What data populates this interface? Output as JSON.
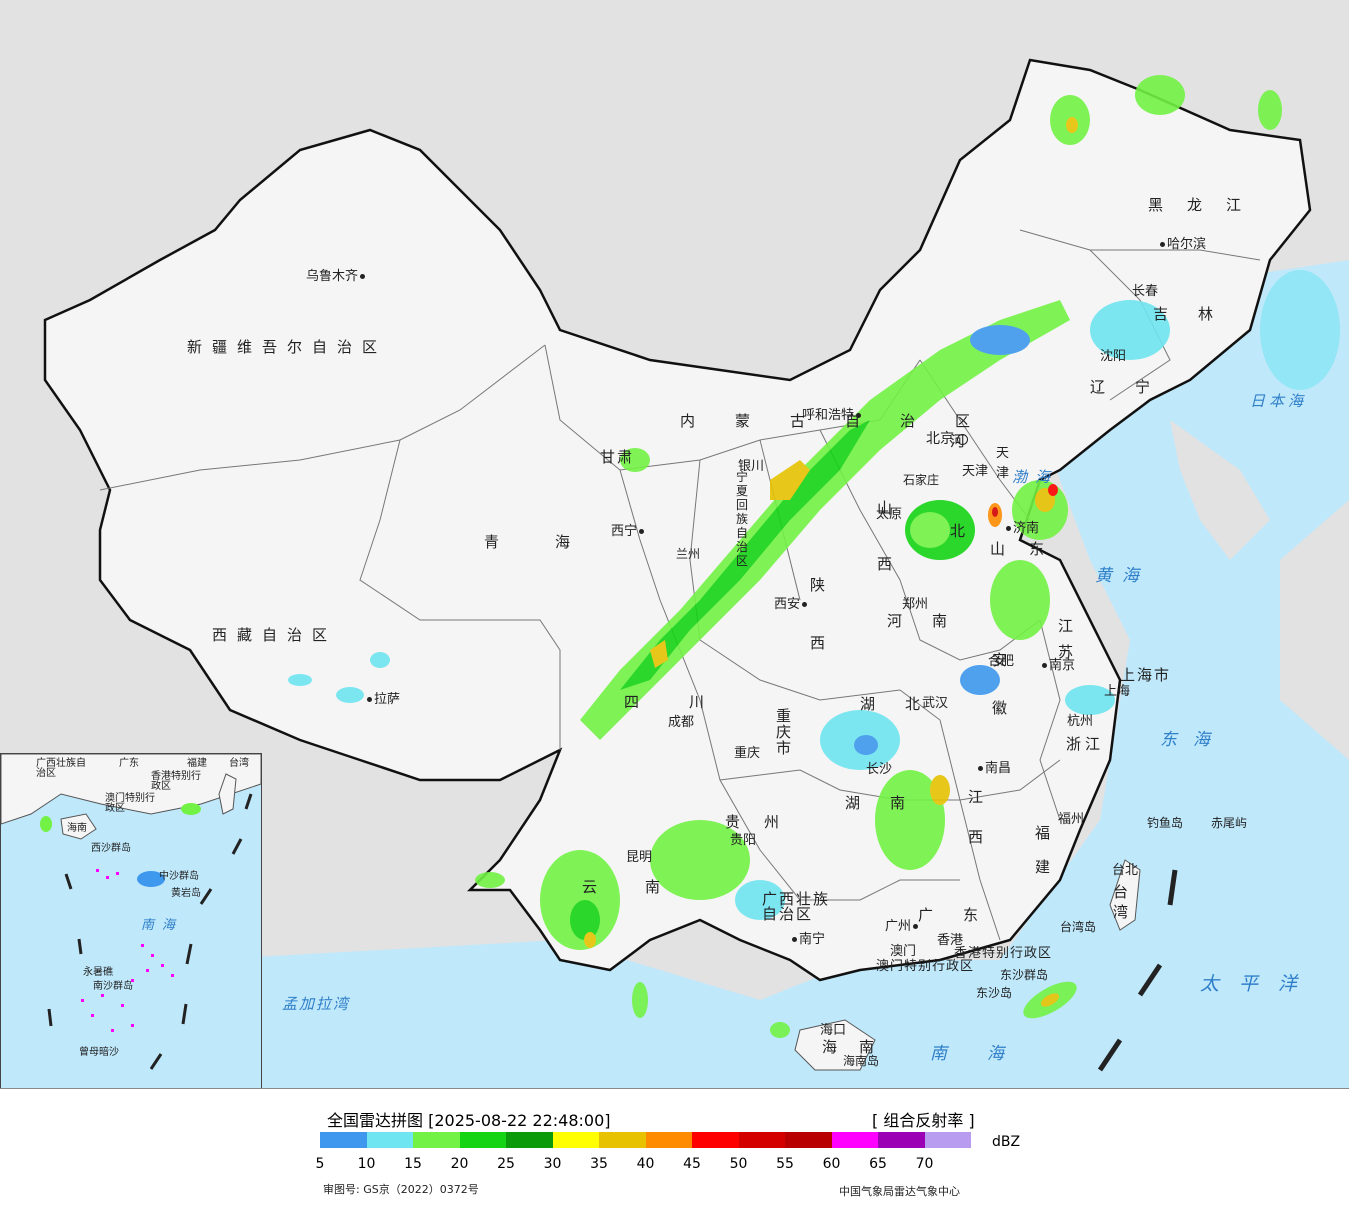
{
  "legend": {
    "title": "全国雷达拼图 [2025-08-22 22:48:00]",
    "product": "[ 组合反射率 ]",
    "unit": "dBZ",
    "ticks": [
      "5",
      "10",
      "15",
      "20",
      "25",
      "30",
      "35",
      "40",
      "45",
      "50",
      "55",
      "60",
      "65",
      "70"
    ],
    "colors": [
      "#3d98ee",
      "#6ee5f0",
      "#72f244",
      "#14d414",
      "#0a9a0a",
      "#ffff00",
      "#e6c200",
      "#ff8c00",
      "#ff0000",
      "#d40000",
      "#b80000",
      "#ff00ff",
      "#9b00b5",
      "#b89cf0"
    ],
    "approval": "审图号: GS京（2022）0372号",
    "source": "中国气象局雷达气象中心"
  },
  "map": {
    "provinces": [
      {
        "name": "新疆维吾尔自治区"
      },
      {
        "name": "西藏自治区"
      },
      {
        "name": "青海"
      },
      {
        "name": "甘肃"
      },
      {
        "name": "内蒙古自治区"
      },
      {
        "name": "黑龙江"
      },
      {
        "name": "吉林"
      },
      {
        "name": "辽宁"
      },
      {
        "name": "四川"
      },
      {
        "name": "云南"
      },
      {
        "name": "贵州"
      },
      {
        "name": "广西壮族自治区"
      },
      {
        "name": "广东"
      },
      {
        "name": "湖南"
      },
      {
        "name": "湖北"
      },
      {
        "name": "河南"
      },
      {
        "name": "陕西"
      },
      {
        "name": "山西"
      },
      {
        "name": "河北"
      },
      {
        "name": "山东"
      },
      {
        "name": "江苏"
      },
      {
        "name": "安徽"
      },
      {
        "name": "浙江"
      },
      {
        "name": "江西"
      },
      {
        "name": "福建"
      },
      {
        "name": "台湾"
      },
      {
        "name": "海南"
      },
      {
        "name": "重庆市"
      },
      {
        "name": "宁夏回族自治区"
      },
      {
        "name": "上海市"
      },
      {
        "name": "天津"
      },
      {
        "name": "香港特别行政区"
      },
      {
        "name": "澳门特别行政区"
      }
    ],
    "cities": [
      "乌鲁木齐",
      "拉萨",
      "西宁",
      "兰州",
      "银川",
      "呼和浩特",
      "北京",
      "天津",
      "石家庄",
      "太原",
      "济南",
      "郑州",
      "西安",
      "成都",
      "重庆",
      "贵阳",
      "昆明",
      "南宁",
      "广州",
      "香港",
      "澳门",
      "海口",
      "长沙",
      "武汉",
      "南昌",
      "合肥",
      "南京",
      "上海",
      "杭州",
      "福州",
      "台北",
      "沈阳",
      "长春",
      "哈尔滨"
    ],
    "seas": [
      "日本海",
      "渤海",
      "黄海",
      "东海",
      "南海",
      "太平洋",
      "孟加拉湾"
    ],
    "islands": [
      "钓鱼岛",
      "赤尾屿",
      "台湾岛",
      "海南岛",
      "东沙群岛",
      "东沙岛"
    ]
  },
  "inset": {
    "labels": [
      "广西壮族自治区",
      "广东",
      "福建",
      "台湾",
      "香港特别行政区",
      "澳门特别行政区",
      "海南",
      "西沙群岛",
      "中沙群岛",
      "黄岩岛",
      "南沙群岛",
      "永暑礁",
      "曾母暗沙"
    ],
    "sea": "南海"
  }
}
